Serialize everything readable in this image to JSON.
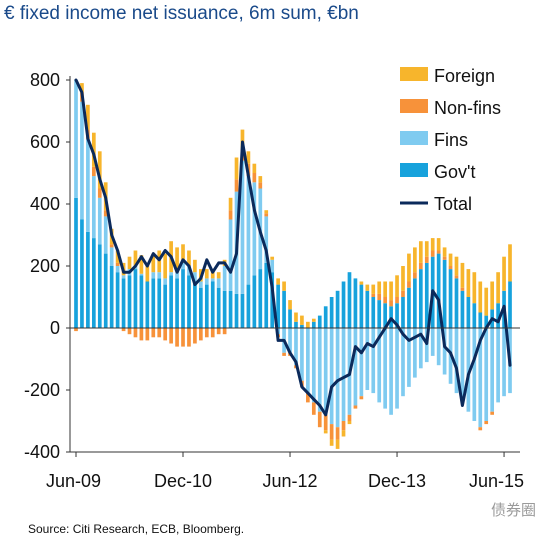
{
  "title": "€ fixed income net issuance, 6m sum, €bn",
  "source": "Source: Citi Research, ECB, Bloomberg.",
  "watermark": "债券圈",
  "colors": {
    "foreign": "#F7B52C",
    "nonfins": "#F7923A",
    "fins": "#7FCBF0",
    "govt": "#17A2DC",
    "total": "#0B2A5B",
    "axis": "#333333",
    "title": "#1a4a8a"
  },
  "chart_data": {
    "type": "bar",
    "stacked": true,
    "grid": false,
    "legend_position": "top-right",
    "ylim": [
      -400,
      800
    ],
    "yticks": [
      800,
      600,
      400,
      200,
      0,
      -200,
      -400
    ],
    "xtick_labels": [
      "Jun-09",
      "Dec-10",
      "Jun-12",
      "Dec-13",
      "Jun-15"
    ],
    "xtick_index": [
      0,
      18,
      36,
      54,
      72
    ],
    "categories": [
      "Jun-09",
      "Jul-09",
      "Aug-09",
      "Sep-09",
      "Oct-09",
      "Nov-09",
      "Dec-09",
      "Jan-10",
      "Feb-10",
      "Mar-10",
      "Apr-10",
      "May-10",
      "Jun-10",
      "Jul-10",
      "Aug-10",
      "Sep-10",
      "Oct-10",
      "Nov-10",
      "Dec-10",
      "Jan-11",
      "Feb-11",
      "Mar-11",
      "Apr-11",
      "May-11",
      "Jun-11",
      "Jul-11",
      "Aug-11",
      "Sep-11",
      "Oct-11",
      "Nov-11",
      "Dec-11",
      "Jan-12",
      "Feb-12",
      "Mar-12",
      "Apr-12",
      "May-12",
      "Jun-12",
      "Jul-12",
      "Aug-12",
      "Sep-12",
      "Oct-12",
      "Nov-12",
      "Dec-12",
      "Jan-13",
      "Feb-13",
      "Mar-13",
      "Apr-13",
      "May-13",
      "Jun-13",
      "Jul-13",
      "Aug-13",
      "Sep-13",
      "Oct-13",
      "Nov-13",
      "Dec-13",
      "Jan-14",
      "Feb-14",
      "Mar-14",
      "Apr-14",
      "May-14",
      "Jun-14",
      "Jul-14",
      "Aug-14",
      "Sep-14",
      "Oct-14",
      "Nov-14",
      "Dec-14",
      "Jan-15",
      "Feb-15",
      "Mar-15",
      "Apr-15",
      "May-15",
      "Jun-15",
      "Jul-15"
    ],
    "series": [
      {
        "name": "Gov't",
        "values": [
          420,
          350,
          310,
          290,
          270,
          240,
          200,
          180,
          160,
          170,
          190,
          170,
          150,
          160,
          160,
          140,
          170,
          160,
          190,
          170,
          150,
          130,
          140,
          150,
          130,
          120,
          120,
          110,
          110,
          140,
          170,
          190,
          210,
          180,
          140,
          120,
          60,
          20,
          10,
          0,
          20,
          40,
          70,
          100,
          120,
          150,
          180,
          160,
          140,
          120,
          100,
          90,
          80,
          70,
          80,
          100,
          130,
          160,
          190,
          210,
          230,
          240,
          220,
          190,
          160,
          120,
          100,
          80,
          50,
          40,
          60,
          80,
          120,
          150
        ]
      },
      {
        "name": "Fins",
        "values": [
          380,
          380,
          300,
          200,
          150,
          120,
          60,
          20,
          10,
          20,
          10,
          5,
          0,
          20,
          20,
          20,
          10,
          20,
          20,
          30,
          30,
          20,
          20,
          10,
          30,
          80,
          230,
          330,
          430,
          350,
          300,
          260,
          150,
          40,
          -20,
          -80,
          -80,
          -120,
          -170,
          -210,
          -240,
          -270,
          -280,
          -310,
          -320,
          -300,
          -280,
          -250,
          -220,
          -200,
          -210,
          -240,
          -260,
          -280,
          -260,
          -220,
          -190,
          -160,
          -130,
          -110,
          -90,
          -120,
          -150,
          -180,
          -210,
          -240,
          -270,
          -300,
          -320,
          -300,
          -270,
          -240,
          -220,
          -210
        ]
      },
      {
        "name": "Non-fins",
        "values": [
          -10,
          30,
          30,
          30,
          30,
          20,
          10,
          10,
          -10,
          -20,
          -30,
          -40,
          -40,
          -30,
          -30,
          -40,
          -50,
          -60,
          -60,
          -60,
          -50,
          -40,
          -30,
          -30,
          -20,
          -20,
          30,
          40,
          40,
          40,
          30,
          20,
          10,
          0,
          -10,
          -10,
          -10,
          -10,
          -20,
          -30,
          -40,
          -50,
          -50,
          -50,
          -40,
          -30,
          -20,
          -10,
          -10,
          0,
          10,
          20,
          20,
          20,
          20,
          20,
          20,
          20,
          20,
          20,
          20,
          10,
          10,
          10,
          10,
          10,
          0,
          0,
          -10,
          -10,
          -10,
          0,
          0,
          0
        ]
      },
      {
        "name": "Foreign",
        "values": [
          0,
          30,
          80,
          110,
          120,
          90,
          50,
          40,
          40,
          40,
          50,
          60,
          60,
          60,
          70,
          80,
          100,
          80,
          60,
          50,
          40,
          40,
          30,
          30,
          20,
          20,
          40,
          70,
          60,
          40,
          30,
          20,
          10,
          10,
          20,
          30,
          30,
          30,
          30,
          20,
          10,
          0,
          -10,
          -20,
          -30,
          -20,
          -10,
          0,
          10,
          20,
          30,
          40,
          50,
          60,
          70,
          80,
          90,
          80,
          70,
          50,
          40,
          40,
          30,
          40,
          60,
          80,
          90,
          100,
          100,
          90,
          90,
          100,
          110,
          120
        ]
      },
      {
        "name": "Total",
        "values": [
          800,
          760,
          610,
          560,
          480,
          420,
          300,
          250,
          180,
          180,
          200,
          230,
          200,
          240,
          220,
          250,
          230,
          180,
          220,
          200,
          140,
          160,
          220,
          180,
          210,
          210,
          180,
          240,
          600,
          490,
          380,
          310,
          250,
          130,
          -40,
          -40,
          -80,
          -110,
          -190,
          -210,
          -230,
          -250,
          -280,
          -190,
          -170,
          -160,
          -150,
          -60,
          -80,
          -50,
          -60,
          -30,
          0,
          30,
          10,
          -20,
          -40,
          -30,
          -20,
          -50,
          120,
          90,
          -60,
          -80,
          -130,
          -250,
          -150,
          -100,
          -40,
          0,
          30,
          20,
          70,
          -120
        ]
      }
    ]
  }
}
